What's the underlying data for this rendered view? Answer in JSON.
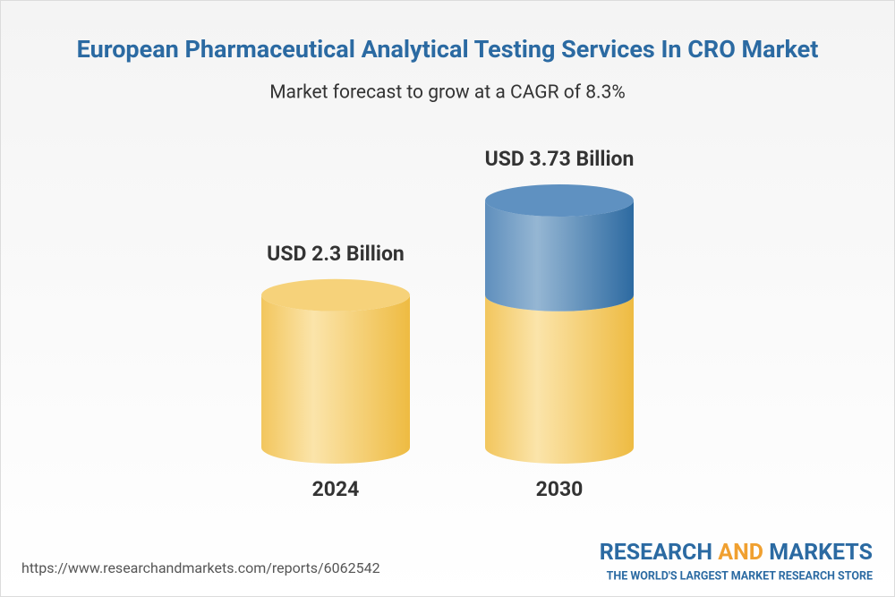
{
  "chart_data": {
    "type": "cylinder",
    "title": "European Pharmaceutical Analytical Testing Services In CRO Market",
    "subtitle": "Market forecast to grow at a CAGR of 8.3%",
    "categories": [
      "2024",
      "2030"
    ],
    "values": [
      2.3,
      3.73
    ],
    "value_labels": [
      "USD 2.3 Billion",
      "USD 3.73 Billion"
    ],
    "color": "#f3c55a",
    "growth_color": "#3f7bb1"
  },
  "footer": {
    "url": "https://www.researchandmarkets.com/reports/6062542",
    "brand": [
      "RESEARCH",
      "AND",
      "MARKETS"
    ],
    "tagline": "THE WORLD'S LARGEST MARKET RESEARCH STORE"
  }
}
